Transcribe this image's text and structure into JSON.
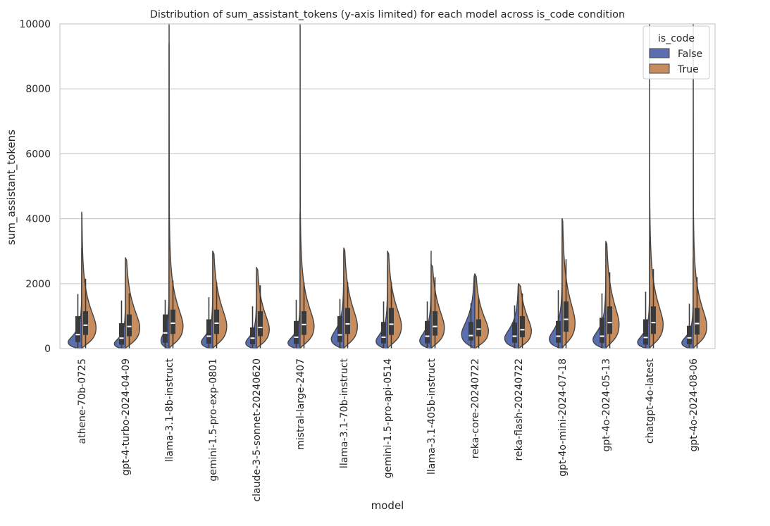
{
  "chart_data": {
    "type": "violin",
    "title": "Distribution of sum_assistant_tokens (y-axis limited) for each model across is_code condition",
    "xlabel": "model",
    "ylabel": "sum_assistant_tokens",
    "ylim": [
      0,
      10000
    ],
    "yticks": [
      0,
      2000,
      4000,
      6000,
      8000,
      10000
    ],
    "grid": true,
    "split": true,
    "legend": {
      "title": "is_code",
      "position": "top-right",
      "entries": [
        {
          "name": "False",
          "color": "#5b6faf"
        },
        {
          "name": "True",
          "color": "#c88d5e"
        }
      ]
    },
    "categories": [
      "athene-70b-0725",
      "gpt-4-turbo-2024-04-09",
      "llama-3.1-8b-instruct",
      "gemini-1.5-pro-exp-0801",
      "claude-3-5-sonnet-20240620",
      "mistral-large-2407",
      "llama-3.1-70b-instruct",
      "gemini-1.5-pro-api-0514",
      "llama-3.1-405b-instruct",
      "reka-core-20240722",
      "reka-flash-20240722",
      "gpt-4o-mini-2024-07-18",
      "gpt-4o-2024-05-13",
      "chatgpt-4o-latest",
      "gpt-4o-2024-08-06"
    ],
    "series": [
      {
        "name": "False",
        "color": "#5b6faf",
        "stats": [
          {
            "median": 430,
            "q1": 200,
            "q3": 1000,
            "wlo": 0,
            "whi": 1680,
            "mode": 200,
            "peak": 0.74,
            "tail": 3100
          },
          {
            "median": 320,
            "q1": 120,
            "q3": 780,
            "wlo": 0,
            "whi": 1480,
            "mode": 150,
            "peak": 0.6,
            "tail": 2700
          },
          {
            "median": 480,
            "q1": 180,
            "q3": 1050,
            "wlo": 0,
            "whi": 1500,
            "mode": 250,
            "peak": 0.44,
            "tail": 9400
          },
          {
            "median": 380,
            "q1": 150,
            "q3": 900,
            "wlo": 0,
            "whi": 1580,
            "mode": 200,
            "peak": 0.62,
            "tail": 3000
          },
          {
            "median": 320,
            "q1": 130,
            "q3": 650,
            "wlo": 0,
            "whi": 1300,
            "mode": 180,
            "peak": 0.58,
            "tail": 2300
          },
          {
            "median": 350,
            "q1": 140,
            "q3": 850,
            "wlo": 0,
            "whi": 1500,
            "mode": 180,
            "peak": 0.66,
            "tail": 4200
          },
          {
            "median": 420,
            "q1": 200,
            "q3": 1000,
            "wlo": 0,
            "whi": 1530,
            "mode": 300,
            "peak": 0.68,
            "tail": 3000
          },
          {
            "median": 350,
            "q1": 160,
            "q3": 820,
            "wlo": 0,
            "whi": 1450,
            "mode": 230,
            "peak": 0.62,
            "tail": 2600
          },
          {
            "median": 380,
            "q1": 160,
            "q3": 850,
            "wlo": 0,
            "whi": 1450,
            "mode": 250,
            "peak": 0.62,
            "tail": 3000
          },
          {
            "median": 400,
            "q1": 250,
            "q3": 820,
            "wlo": 0,
            "whi": 1400,
            "mode": 450,
            "peak": 0.72,
            "tail": 2300
          },
          {
            "median": 380,
            "q1": 180,
            "q3": 800,
            "wlo": 0,
            "whi": 1330,
            "mode": 320,
            "peak": 0.75,
            "tail": 2000
          },
          {
            "median": 380,
            "q1": 180,
            "q3": 850,
            "wlo": 0,
            "whi": 1800,
            "mode": 300,
            "peak": 0.7,
            "tail": 4000
          },
          {
            "median": 380,
            "q1": 170,
            "q3": 950,
            "wlo": 0,
            "whi": 1700,
            "mode": 280,
            "peak": 0.7,
            "tail": 3300
          },
          {
            "median": 340,
            "q1": 120,
            "q3": 900,
            "wlo": 0,
            "whi": 1750,
            "mode": 200,
            "peak": 0.65,
            "tail": 3300
          },
          {
            "median": 330,
            "q1": 130,
            "q3": 700,
            "wlo": 0,
            "whi": 1380,
            "mode": 180,
            "peak": 0.62,
            "tail": 2800
          }
        ]
      },
      {
        "name": "True",
        "color": "#c88d5e",
        "stats": [
          {
            "median": 720,
            "q1": 420,
            "q3": 1150,
            "wlo": 0,
            "whi": 2150,
            "mode": 650,
            "peak": 0.78,
            "tail": 4200
          },
          {
            "median": 680,
            "q1": 380,
            "q3": 1050,
            "wlo": 0,
            "whi": 1700,
            "mode": 650,
            "peak": 0.78,
            "tail": 2800
          },
          {
            "median": 780,
            "q1": 450,
            "q3": 1200,
            "wlo": 0,
            "whi": 2100,
            "mode": 700,
            "peak": 0.76,
            "tail": 10000
          },
          {
            "median": 780,
            "q1": 450,
            "q3": 1200,
            "wlo": 0,
            "whi": 2050,
            "mode": 700,
            "peak": 0.76,
            "tail": 3000
          },
          {
            "median": 650,
            "q1": 380,
            "q3": 1150,
            "wlo": 0,
            "whi": 1950,
            "mode": 600,
            "peak": 0.7,
            "tail": 2500
          },
          {
            "median": 740,
            "q1": 420,
            "q3": 1150,
            "wlo": 0,
            "whi": 2050,
            "mode": 700,
            "peak": 0.76,
            "tail": 10000
          },
          {
            "median": 760,
            "q1": 450,
            "q3": 1250,
            "wlo": 0,
            "whi": 2050,
            "mode": 700,
            "peak": 0.74,
            "tail": 3100
          },
          {
            "median": 750,
            "q1": 420,
            "q3": 1250,
            "wlo": 0,
            "whi": 2050,
            "mode": 700,
            "peak": 0.76,
            "tail": 3000
          },
          {
            "median": 680,
            "q1": 400,
            "q3": 1150,
            "wlo": 0,
            "whi": 2200,
            "mode": 650,
            "peak": 0.72,
            "tail": 2600
          },
          {
            "median": 600,
            "q1": 380,
            "q3": 900,
            "wlo": 0,
            "whi": 1550,
            "mode": 550,
            "peak": 0.74,
            "tail": 2300
          },
          {
            "median": 580,
            "q1": 350,
            "q3": 1000,
            "wlo": 0,
            "whi": 1700,
            "mode": 550,
            "peak": 0.7,
            "tail": 2000
          },
          {
            "median": 900,
            "q1": 520,
            "q3": 1450,
            "wlo": 0,
            "whi": 2750,
            "mode": 800,
            "peak": 0.7,
            "tail": 4000
          },
          {
            "median": 800,
            "q1": 450,
            "q3": 1300,
            "wlo": 0,
            "whi": 2350,
            "mode": 750,
            "peak": 0.72,
            "tail": 3300
          },
          {
            "median": 800,
            "q1": 450,
            "q3": 1300,
            "wlo": 0,
            "whi": 2450,
            "mode": 750,
            "peak": 0.74,
            "tail": 10000
          },
          {
            "median": 770,
            "q1": 430,
            "q3": 1250,
            "wlo": 0,
            "whi": 2200,
            "mode": 700,
            "peak": 0.74,
            "tail": 10000
          }
        ]
      }
    ]
  }
}
